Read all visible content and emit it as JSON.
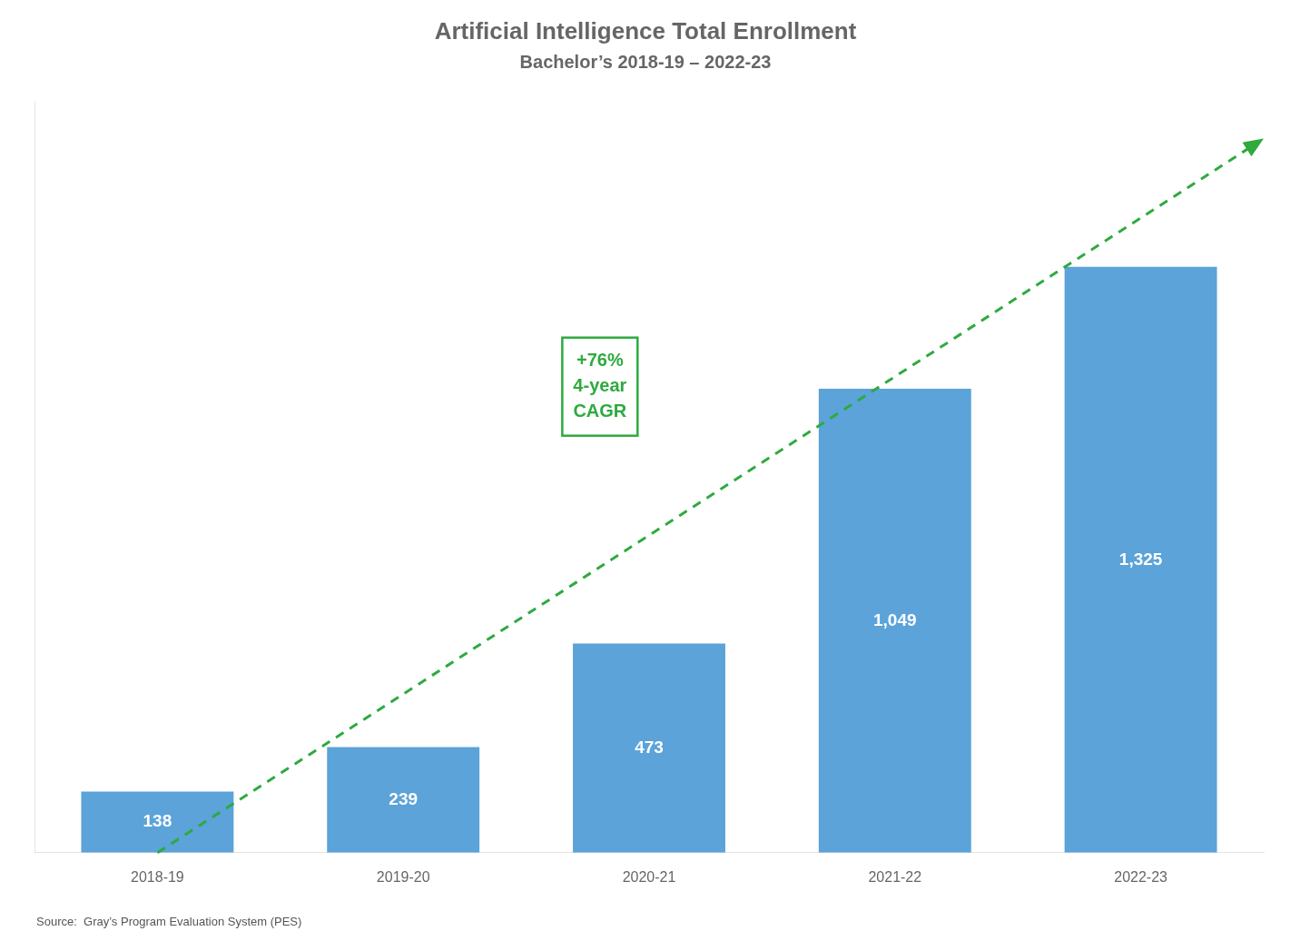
{
  "chart_data": {
    "type": "bar",
    "title": "Artificial Intelligence Total Enrollment",
    "subtitle": "Bachelor’s 2018-19 – 2022-23",
    "categories": [
      "2018-19",
      "2019-20",
      "2020-21",
      "2021-22",
      "2022-23"
    ],
    "values": [
      138,
      239,
      473,
      1049,
      1325
    ],
    "value_labels": [
      "138",
      "239",
      "473",
      "1,049",
      "1,325"
    ],
    "color": "#5BA3D9",
    "ylim": [
      0,
      1700
    ],
    "grid": false,
    "data_labels": true,
    "tick_labels": "x",
    "annotations": [
      {
        "text": "+76%\n4-year\nCAGR",
        "color": "#2EAA3F"
      }
    ],
    "source": "Source:  Gray’s Program Evaluation System (PES)"
  }
}
